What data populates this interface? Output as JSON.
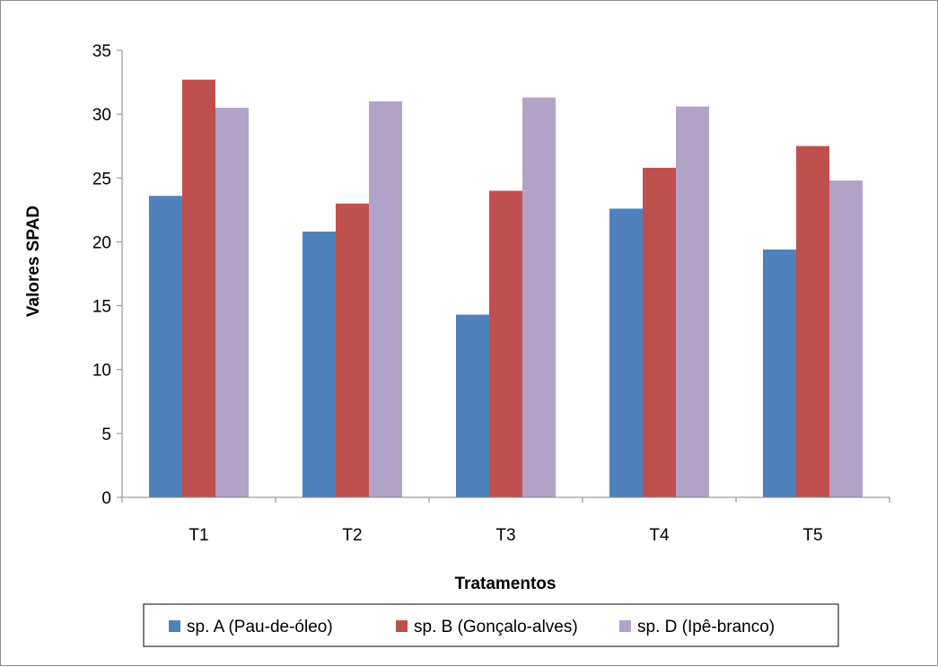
{
  "chart_data": {
    "type": "bar",
    "title": "",
    "xlabel": "Tratamentos",
    "ylabel": "Valores SPAD",
    "categories": [
      "T1",
      "T2",
      "T3",
      "T4",
      "T5"
    ],
    "ylim": [
      0,
      35
    ],
    "yticks": [
      0,
      5,
      10,
      15,
      20,
      25,
      30,
      35
    ],
    "grid": false,
    "legend_position": "bottom",
    "series": [
      {
        "name": "sp. A (Pau-de-óleo)",
        "color": "#4F81BD",
        "values": [
          23.6,
          20.8,
          14.3,
          22.6,
          19.4
        ]
      },
      {
        "name": "sp. B (Gonçalo-alves)",
        "color": "#C0504D",
        "values": [
          32.7,
          23.0,
          24.0,
          25.8,
          27.5
        ]
      },
      {
        "name": "sp. D (Ipê-branco)",
        "color": "#B2A2C7",
        "values": [
          30.5,
          31.0,
          31.3,
          30.6,
          24.8
        ]
      }
    ]
  }
}
